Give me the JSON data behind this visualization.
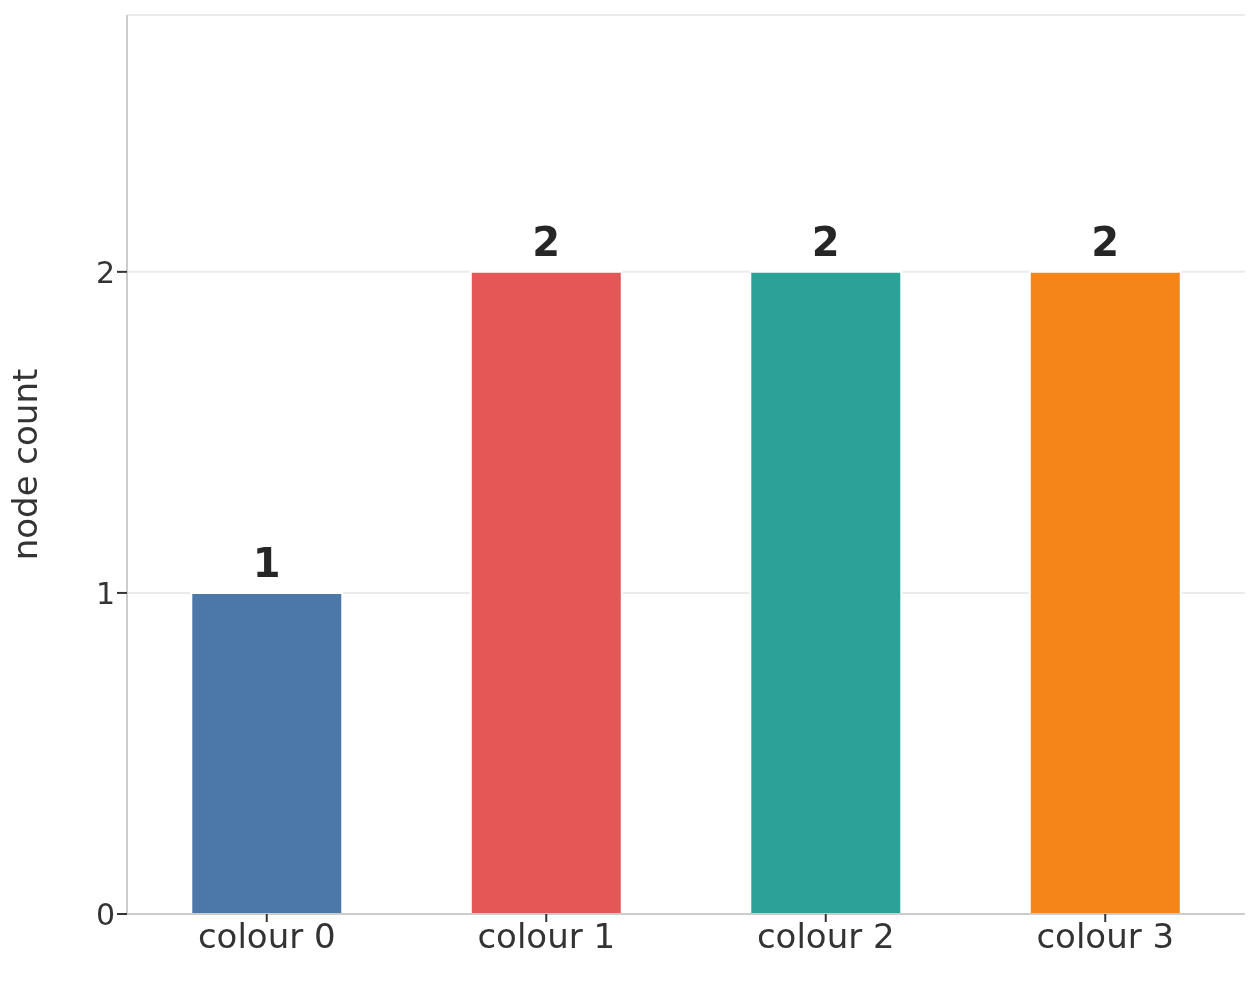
{
  "chart_data": {
    "type": "bar",
    "ylabel": "node count",
    "categories": [
      "colour 0",
      "colour 1",
      "colour 2",
      "colour 3"
    ],
    "values": [
      1,
      2,
      2,
      2
    ],
    "colors": [
      "#4c78a8",
      "#e45756",
      "#2ca198",
      "#f58518"
    ],
    "ylim": [
      0,
      2.8
    ],
    "yticks": [
      0,
      1,
      2
    ],
    "grid": "y",
    "data_labels": true
  }
}
